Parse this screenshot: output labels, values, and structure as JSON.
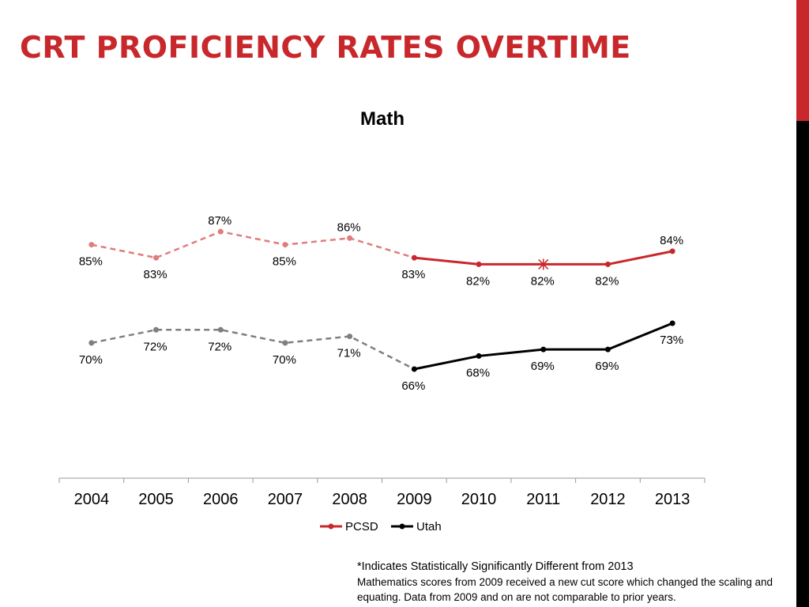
{
  "slide": {
    "title": "CRT PROFICIENCY RATES OVERTIME",
    "note_significance": "*Indicates Statistically Significantly Different from 2013",
    "note_cut_score": "Mathematics scores from 2009 received a new cut score which changed the scaling and equating. Data from 2009 and on are not comparable to prior years.",
    "colors": {
      "accent": "#c8282c",
      "dark": "#000000"
    }
  },
  "chart_data": {
    "type": "line",
    "title": "Math",
    "categories": [
      "2004",
      "2005",
      "2006",
      "2007",
      "2008",
      "2009",
      "2010",
      "2011",
      "2012",
      "2013"
    ],
    "ylim": [
      0,
      100
    ],
    "grid": false,
    "legend_position": "bottom",
    "series": [
      {
        "name": "PCSD",
        "color": "#c8282c",
        "values": [
          85,
          83,
          87,
          85,
          86,
          83,
          82,
          82,
          82,
          84
        ],
        "labels": [
          "85%",
          "83%",
          "87%",
          "85%",
          "86%",
          "83%",
          "82%",
          "82%",
          "82%",
          "84%"
        ],
        "dashed_until_index": 5,
        "significant_index": 7
      },
      {
        "name": "Utah",
        "color": "#000000",
        "values": [
          70,
          72,
          72,
          70,
          71,
          66,
          68,
          69,
          69,
          73
        ],
        "labels": [
          "70%",
          "72%",
          "72%",
          "70%",
          "71%",
          "66%",
          "68%",
          "69%",
          "69%",
          "73%"
        ],
        "dashed_until_index": 5
      }
    ]
  }
}
